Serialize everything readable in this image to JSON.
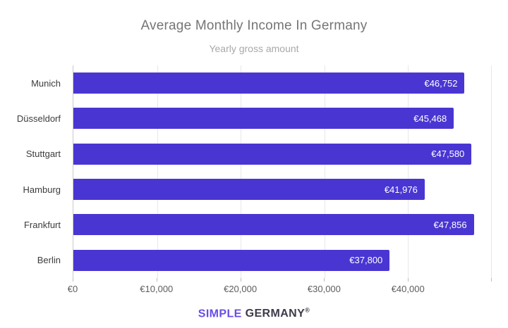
{
  "chart_data": {
    "type": "bar",
    "orientation": "horizontal",
    "title": "Average Monthly Income In Germany",
    "subtitle": "Yearly gross amount",
    "categories": [
      "Munich",
      "Düsseldorf",
      "Stuttgart",
      "Hamburg",
      "Frankfurt",
      "Berlin"
    ],
    "values": [
      46752,
      45468,
      47580,
      41976,
      47856,
      37800
    ],
    "value_labels": [
      "€46,752",
      "€45,468",
      "€47,580",
      "€41,976",
      "€47,856",
      "€37,800"
    ],
    "xlabel": "",
    "ylabel": "",
    "xlim": [
      0,
      50000
    ],
    "x_ticks": [
      {
        "value": 0,
        "label": "€0"
      },
      {
        "value": 10000,
        "label": "€10,000"
      },
      {
        "value": 20000,
        "label": "€20,000"
      },
      {
        "value": 30000,
        "label": "€30,000"
      },
      {
        "value": 40000,
        "label": "€40,000"
      },
      {
        "value": 50000,
        "label": ""
      }
    ],
    "grid": "vertical",
    "legend": "none",
    "bar_color": "#4936d2"
  },
  "footer": {
    "brand_primary": "SIMPLE",
    "brand_secondary": "GERMANY",
    "registered": "®",
    "primary_color": "#6a4ce8",
    "secondary_color": "#3d3b49"
  }
}
